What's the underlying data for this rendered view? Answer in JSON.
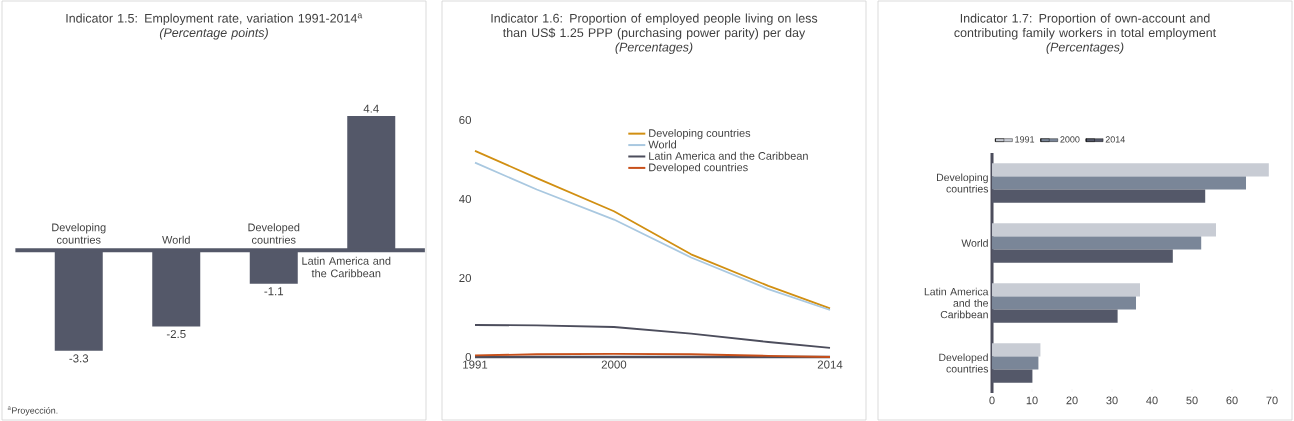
{
  "chart_data": [
    {
      "type": "bar",
      "title": "Indicator 1.5: Employment rate, variation 1991-2014$^{a}$",
      "subtitle": "(Percentage points)",
      "categories": [
        "Developing countries",
        "World",
        "Developed countries",
        "Latin America and the Caribbean"
      ],
      "values": [
        -3.3,
        -2.5,
        -1.1,
        4.4
      ],
      "color": "#545869",
      "data_labels": true,
      "annotations": [
        "$^{a}$Proyección."
      ]
    },
    {
      "type": "line",
      "title": "Indicator 1.6: Proportion of employed people living on less than US$ 1.25 PPP (purchasing power parity) per day",
      "subtitle": "(Percentages)",
      "x": [
        1991,
        1995,
        2000,
        2005,
        2010,
        2014
      ],
      "series": [
        {
          "name": "Developing countries",
          "color": "#d18f12",
          "values": [
            52.2,
            45.3,
            36.9,
            26,
            18,
            12.3
          ]
        },
        {
          "name": "World",
          "color": "#a9c8e0",
          "values": [
            49.2,
            42.4,
            34.8,
            25.2,
            17.2,
            11.9
          ]
        },
        {
          "name": "Latin America and the Caribbean",
          "color": "#4c4d5c",
          "values": [
            8.1,
            8.0,
            7.6,
            5.9,
            3.8,
            2.3
          ]
        },
        {
          "name": "Developed countries",
          "color": "#c8501a",
          "values": [
            0.4,
            0.7,
            0.8,
            0.7,
            0.3,
            0
          ]
        }
      ],
      "xlim": [
        1991,
        2014
      ],
      "xticks": [
        1991,
        2000,
        2014
      ],
      "ylim": [
        0,
        60
      ],
      "yticks": [
        0,
        20,
        40,
        60
      ],
      "legend": "top right",
      "marker": "none",
      "line_style": "solid"
    },
    {
      "type": "bar",
      "orientation": "horizontal",
      "title": "Indicator 1.7: Proportion of own-account and contributing family workers in total employment",
      "subtitle": "(Percentages)",
      "categories": [
        "Developing countries",
        "World",
        "Latin America and the Caribbean",
        "Developed countries"
      ],
      "series": [
        {
          "name": "1991",
          "color": "#c8ccd4",
          "values": [
            69.2,
            56,
            37,
            12.1
          ]
        },
        {
          "name": "2000",
          "color": "#7a8698",
          "values": [
            63.5,
            52.3,
            36,
            11.6
          ]
        },
        {
          "name": "2014",
          "color": "#545869",
          "values": [
            53.3,
            45.2,
            31.4,
            10.1
          ]
        }
      ],
      "xlim": [
        0,
        70
      ],
      "xticks": [
        0,
        10,
        20,
        30,
        40,
        50,
        60,
        70
      ],
      "legend": "top left"
    }
  ]
}
